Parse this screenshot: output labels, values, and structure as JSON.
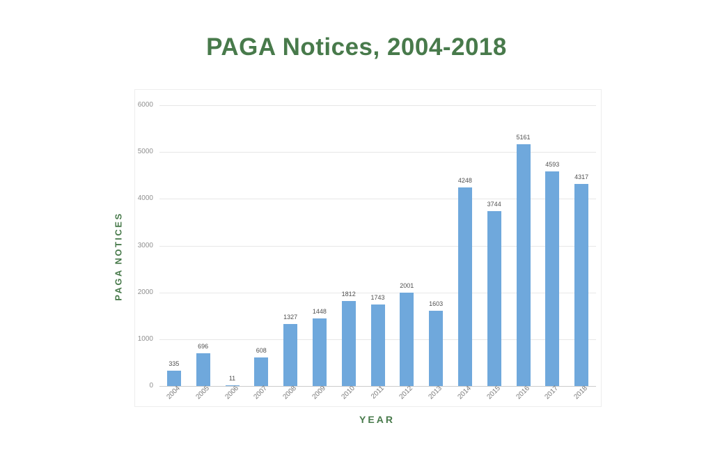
{
  "page": {
    "background_color": "#ffffff"
  },
  "chart_data": {
    "type": "bar",
    "title": "PAGA Notices, 2004-2018",
    "xlabel": "YEAR",
    "ylabel": "PAGA NOTICES",
    "categories": [
      "2004",
      "2005",
      "2006",
      "2007",
      "2008",
      "2009",
      "2010",
      "2011",
      "2012",
      "2013",
      "2014",
      "2015",
      "2016",
      "2017",
      "2018"
    ],
    "values": [
      335,
      696,
      11,
      608,
      1327,
      1448,
      1812,
      1743,
      2001,
      1603,
      4248,
      3744,
      5161,
      4593,
      4317
    ],
    "value_labels_shown": true,
    "ylim": [
      0,
      6000
    ],
    "yticks": [
      0,
      1000,
      2000,
      3000,
      4000,
      5000,
      6000
    ],
    "grid": true,
    "legend": "none",
    "colors": {
      "bar_color": "#6fa8dc",
      "title_color": "#487a4b",
      "axis_title_color": "#487a4b",
      "ytick_color": "#8f8f8f",
      "xtick_color": "#7a7a7a",
      "value_label_color": "#4f4f4f",
      "gridline_color": "#e7e7e7",
      "baseline_color": "#cccccc"
    }
  }
}
